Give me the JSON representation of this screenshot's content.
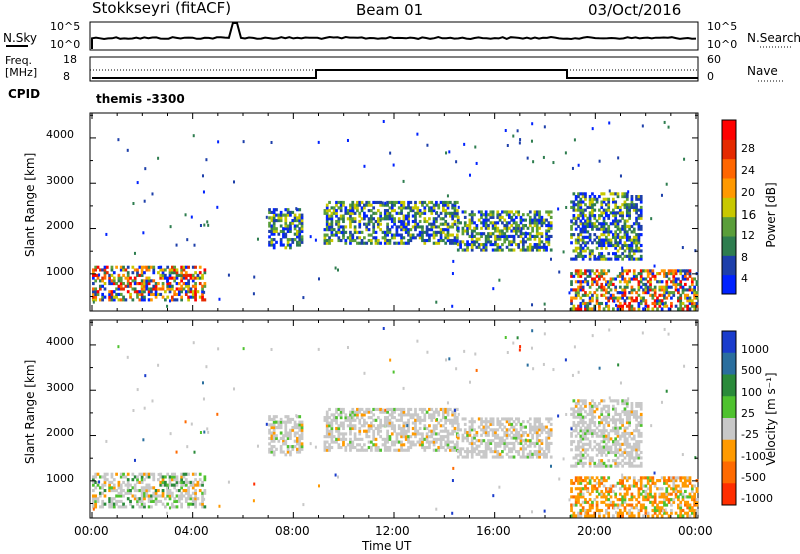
{
  "header": {
    "station": "Stokkseyri (fitACF)",
    "beam": "Beam 01",
    "date": "03/Oct/2016"
  },
  "noise_panel": {
    "left_label": "N.Sky",
    "right_label": "N.Search",
    "left_ticks": [
      "10^5",
      "10^0"
    ],
    "right_ticks": [
      "10^5",
      "10^0"
    ]
  },
  "freq_panel": {
    "left_label_1": "Freq.",
    "left_label_2": "[MHz]",
    "left_ticks": [
      "18",
      "8"
    ],
    "right_label": "Nave",
    "right_ticks": [
      "60",
      "0"
    ]
  },
  "cpid": {
    "label": "CPID",
    "value": "themis -3300"
  },
  "time_axis": {
    "title": "Time UT",
    "ticks": [
      "00:00",
      "04:00",
      "08:00",
      "12:00",
      "16:00",
      "20:00",
      "00:00"
    ]
  },
  "colors": {
    "power": [
      "#0022ff",
      "#1d3faa",
      "#2e7d4f",
      "#5a9e3a",
      "#c8c800",
      "#ff9900",
      "#ff6600",
      "#e52a00",
      "#ff0000"
    ],
    "velocity": [
      "#1a3ccc",
      "#2a6e9e",
      "#2a8a3a",
      "#4fc22f",
      "#c8c8c8",
      "#ff9a00",
      "#ff6a00",
      "#ff2e00"
    ]
  },
  "chart_data": [
    {
      "type": "heatmap",
      "title": "Power",
      "ylabel": "Slant Range [km]",
      "xlabel": "Time UT",
      "yticks": [
        "1000",
        "2000",
        "3000",
        "4000"
      ],
      "ylim": [
        180,
        4550
      ],
      "colorbar": {
        "label": "Power [dB]",
        "ticks": [
          "4",
          "8",
          "12",
          "16",
          "20",
          "24",
          "28"
        ],
        "range": [
          0,
          30
        ]
      },
      "echo_regions": [
        {
          "t_start": 0.0,
          "t_end": 4.5,
          "r_min": 400,
          "r_max": 1150,
          "level": "high"
        },
        {
          "t_start": 7.0,
          "t_end": 8.3,
          "r_min": 1550,
          "r_max": 2450,
          "level": "mid"
        },
        {
          "t_start": 9.2,
          "t_end": 14.5,
          "r_min": 1650,
          "r_max": 2600,
          "level": "mid"
        },
        {
          "t_start": 14.5,
          "t_end": 18.2,
          "r_min": 1500,
          "r_max": 2400,
          "level": "mid"
        },
        {
          "t_start": 19.0,
          "t_end": 21.8,
          "r_min": 1300,
          "r_max": 2800,
          "level": "mid"
        },
        {
          "t_start": 19.0,
          "t_end": 24.0,
          "r_min": 200,
          "r_max": 1100,
          "level": "high"
        }
      ]
    },
    {
      "type": "heatmap",
      "title": "Velocity",
      "ylabel": "Slant Range [km]",
      "xlabel": "Time UT",
      "yticks": [
        "1000",
        "2000",
        "3000",
        "4000"
      ],
      "ylim": [
        180,
        4550
      ],
      "colorbar": {
        "label": "Velocity [m s⁻¹]",
        "ticks": [
          "1000",
          "500",
          "100",
          "25",
          "-25",
          "-100",
          "-500",
          "-1000"
        ]
      }
    }
  ]
}
